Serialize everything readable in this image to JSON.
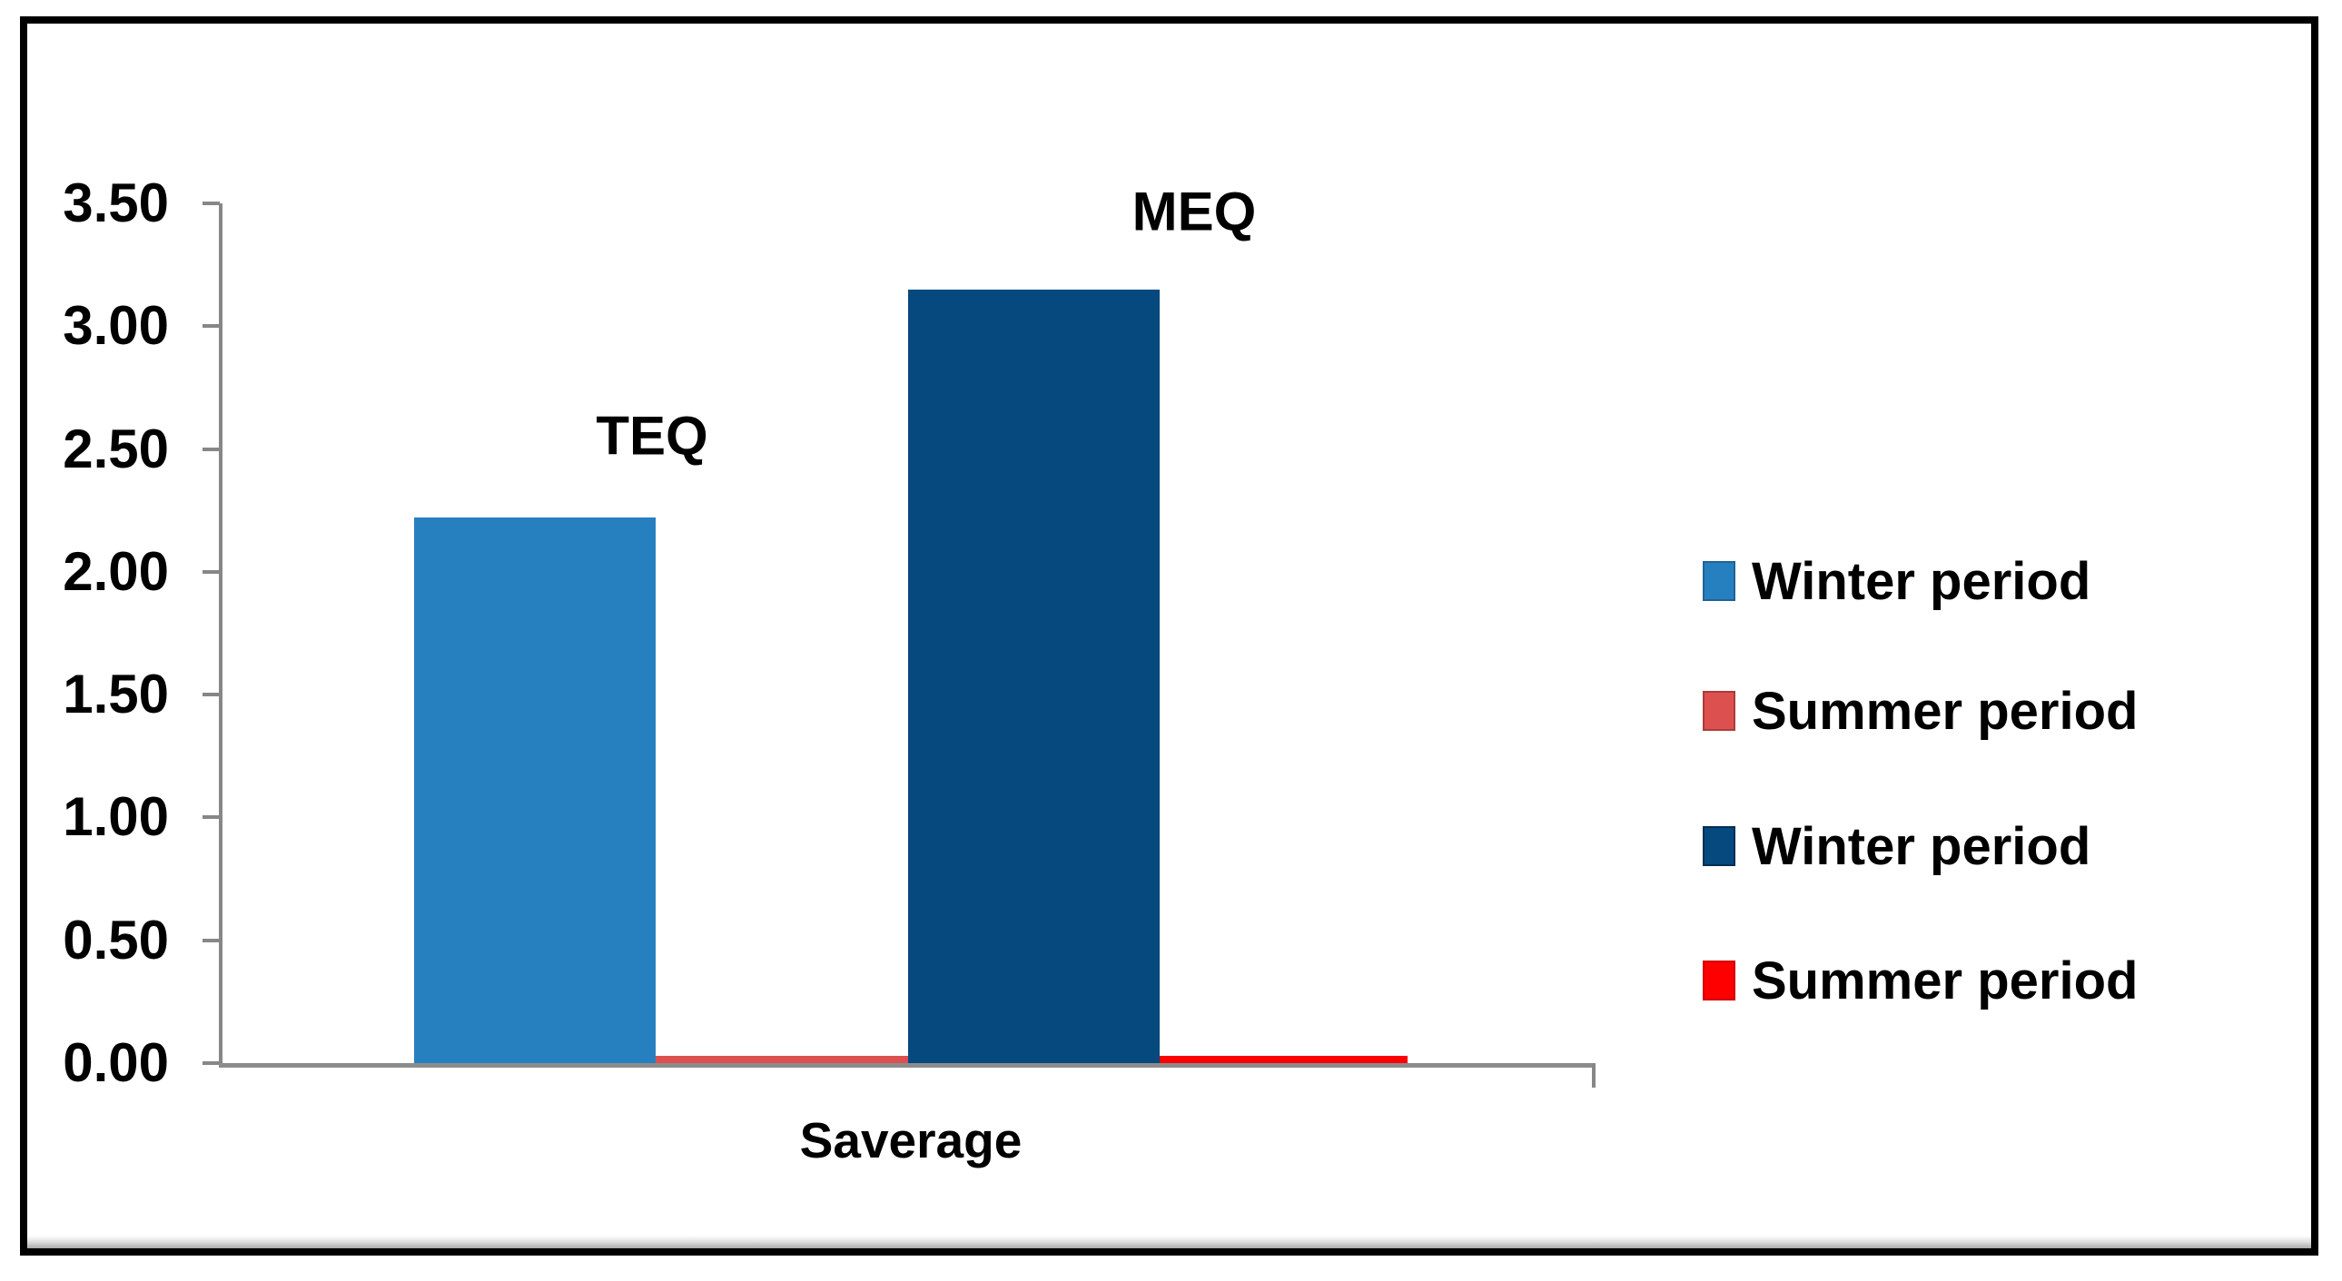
{
  "chart_data": {
    "type": "bar",
    "title": "",
    "categories": [
      "Saverage"
    ],
    "xlabel": "Saverage",
    "ylabel": "",
    "ylim": [
      0,
      3.5
    ],
    "ytick_step": 0.5,
    "ytick_labels": [
      "3.50",
      "3.00",
      "2.50",
      "2.00",
      "1.50",
      "1.00",
      "0.50",
      "0.00"
    ],
    "grid": false,
    "legend_position": "right-middle",
    "series": [
      {
        "name": "Winter period",
        "values": [
          2.22
        ],
        "color": "#2680C0",
        "border_color": "#1E6396",
        "point_label": "TEQ"
      },
      {
        "name": "Summer period",
        "values": [
          0.03
        ],
        "color": "#DC5150",
        "border_color": "#A93C39",
        "point_label": ""
      },
      {
        "name": "Winter period",
        "values": [
          3.15
        ],
        "color": "#05497F",
        "border_color": "#032E52",
        "point_label": "MEQ"
      },
      {
        "name": "Summer period",
        "values": [
          0.03
        ],
        "color": "#FE0000",
        "border_color": "#D40000",
        "point_label": ""
      }
    ],
    "axis_color": "#878787",
    "text_color": "#000000"
  }
}
